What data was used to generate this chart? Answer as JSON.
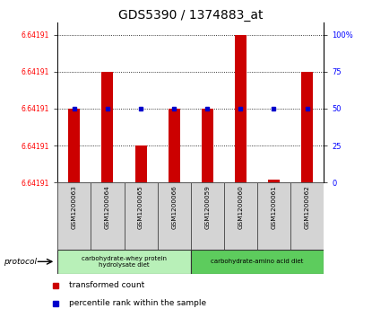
{
  "title": "GDS5390 / 1374883_at",
  "samples": [
    "GSM1200063",
    "GSM1200064",
    "GSM1200065",
    "GSM1200066",
    "GSM1200059",
    "GSM1200060",
    "GSM1200061",
    "GSM1200062"
  ],
  "red_bar_pct": [
    50,
    75,
    25,
    50,
    50,
    100,
    2,
    75
  ],
  "blue_sq_pct": [
    50,
    50,
    50,
    50,
    50,
    50,
    50,
    50
  ],
  "left_ytick_label": "6.64191",
  "right_yticklabels": [
    "0",
    "25",
    "50",
    "75",
    "100%"
  ],
  "protocol_groups": [
    {
      "label": "carbohydrate-whey protein\nhydrolysate diet",
      "start": 0,
      "end": 4,
      "color": "#b8f0b8"
    },
    {
      "label": "carbohydrate-amino acid diet",
      "start": 4,
      "end": 8,
      "color": "#5dcc5d"
    }
  ],
  "protocol_label": "protocol",
  "legend_red": "transformed count",
  "legend_blue": "percentile rank within the sample",
  "bar_color": "#cc0000",
  "square_color": "#0000cc",
  "title_fontsize": 10,
  "bar_width": 0.35,
  "fig_width": 4.15,
  "fig_height": 3.63,
  "dpi": 100
}
